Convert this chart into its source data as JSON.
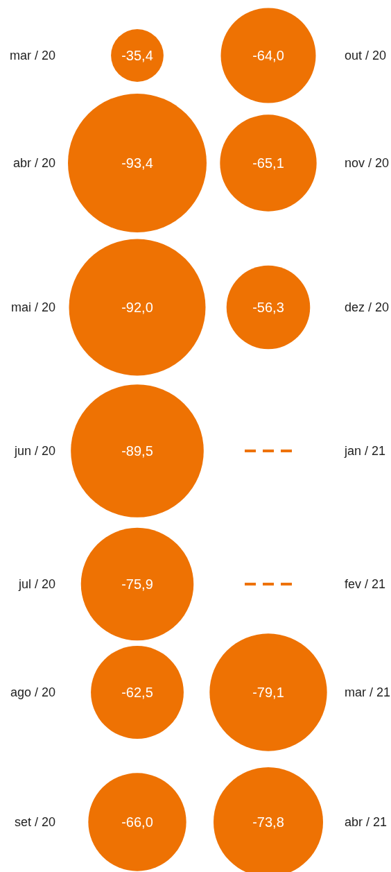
{
  "chart_data": {
    "type": "other",
    "categories": [
      "mar / 20",
      "abr / 20",
      "mai / 20",
      "jun / 20",
      "jul / 20",
      "ago / 20",
      "set / 20",
      "out / 20",
      "nov / 20",
      "dez / 20",
      "jan / 21",
      "fev / 21",
      "mar / 21",
      "abr / 21"
    ],
    "values": [
      -35.4,
      -93.4,
      -92.0,
      -89.5,
      -75.9,
      -62.5,
      -66.0,
      -64.0,
      -65.1,
      -56.3,
      null,
      null,
      -79.1,
      -73.8
    ],
    "value_labels": [
      "-35,4",
      "-93,4",
      "-92,0",
      "-89,5",
      "-75,9",
      "-62,5",
      "-66,0",
      "-64,0",
      "-65,1",
      "-56,3",
      null,
      null,
      "-79,1",
      "-73,8"
    ],
    "color": "#ee7203"
  }
}
